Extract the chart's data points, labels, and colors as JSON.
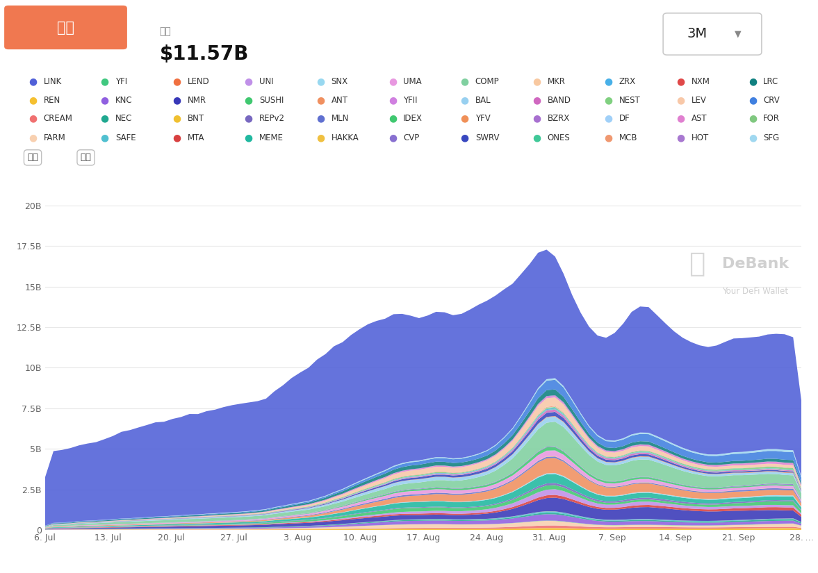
{
  "title_box_text": "市値",
  "title_box_color": "#F07850",
  "subtitle_label": "市値",
  "subtitle_value": "$11.57B",
  "period_label": "3M",
  "background_color": "#ffffff",
  "chart_bg": "#ffffff",
  "grid_color": "#e8e8e8",
  "watermark_text1": "DeBank",
  "watermark_text2": "Your DeFi Wallet",
  "x_labels": [
    "6. Jul",
    "13. Jul",
    "20. Jul",
    "27. Jul",
    "3. Aug",
    "10. Aug",
    "17. Aug",
    "24. Aug",
    "31. Aug",
    "7. Sep",
    "14. Sep",
    "21. Sep",
    "28. …"
  ],
  "ytick_vals": [
    0,
    2.5,
    5,
    7.5,
    10,
    12.5,
    15,
    17.5,
    20
  ],
  "ytick_labels": [
    "0",
    "2.5B",
    "5B",
    "7.5B",
    "10B",
    "12.5B",
    "15B",
    "17.5B",
    "20B"
  ],
  "ylim": [
    0,
    21
  ],
  "legend_items": [
    {
      "label": "LINK",
      "color": "#5060D8"
    },
    {
      "label": "REN",
      "color": "#F5C030"
    },
    {
      "label": "CREAM",
      "color": "#F07070"
    },
    {
      "label": "FARM",
      "color": "#F8D0B0"
    },
    {
      "label": "YFI",
      "color": "#40C880"
    },
    {
      "label": "KNC",
      "color": "#9060E0"
    },
    {
      "label": "NEC",
      "color": "#20A890"
    },
    {
      "label": "SAFE",
      "color": "#50C0D0"
    },
    {
      "label": "LEND",
      "color": "#F07040"
    },
    {
      "label": "NMR",
      "color": "#3838B8"
    },
    {
      "label": "BNT",
      "color": "#F0C030"
    },
    {
      "label": "MTA",
      "color": "#D84040"
    },
    {
      "label": "UNI",
      "color": "#C090E8"
    },
    {
      "label": "SUSHI",
      "color": "#40C870"
    },
    {
      "label": "REPv2",
      "color": "#7868C0"
    },
    {
      "label": "MEME",
      "color": "#20B8A0"
    },
    {
      "label": "SNX",
      "color": "#98D8F0"
    },
    {
      "label": "ANT",
      "color": "#F09060"
    },
    {
      "label": "MLN",
      "color": "#6070D0"
    },
    {
      "label": "HAKKA",
      "color": "#F0C040"
    },
    {
      "label": "UMA",
      "color": "#E898E0"
    },
    {
      "label": "YFII",
      "color": "#D080E0"
    },
    {
      "label": "IDEX",
      "color": "#40C870"
    },
    {
      "label": "CVP",
      "color": "#8870D0"
    },
    {
      "label": "COMP",
      "color": "#80D0A0"
    },
    {
      "label": "BAL",
      "color": "#98D0F0"
    },
    {
      "label": "YFV",
      "color": "#F09058"
    },
    {
      "label": "SWRV",
      "color": "#3848C0"
    },
    {
      "label": "MKR",
      "color": "#F8C8A0"
    },
    {
      "label": "BAND",
      "color": "#D068C0"
    },
    {
      "label": "BZRX",
      "color": "#A870D0"
    },
    {
      "label": "ONES",
      "color": "#40C898"
    },
    {
      "label": "ZRX",
      "color": "#48B0E8"
    },
    {
      "label": "NEST",
      "color": "#80D080"
    },
    {
      "label": "DF",
      "color": "#A0D0F8"
    },
    {
      "label": "MCB",
      "color": "#F09870"
    },
    {
      "label": "NXM",
      "color": "#E04848"
    },
    {
      "label": "LEV",
      "color": "#F8C8A8"
    },
    {
      "label": "AST",
      "color": "#E080D0"
    },
    {
      "label": "HOT",
      "color": "#A878D0"
    },
    {
      "label": "LRC",
      "color": "#108080"
    },
    {
      "label": "CRV",
      "color": "#4080E0"
    },
    {
      "label": "FOR",
      "color": "#80C880"
    },
    {
      "label": "SFG",
      "color": "#A0D8F0"
    }
  ],
  "n_points": 90
}
